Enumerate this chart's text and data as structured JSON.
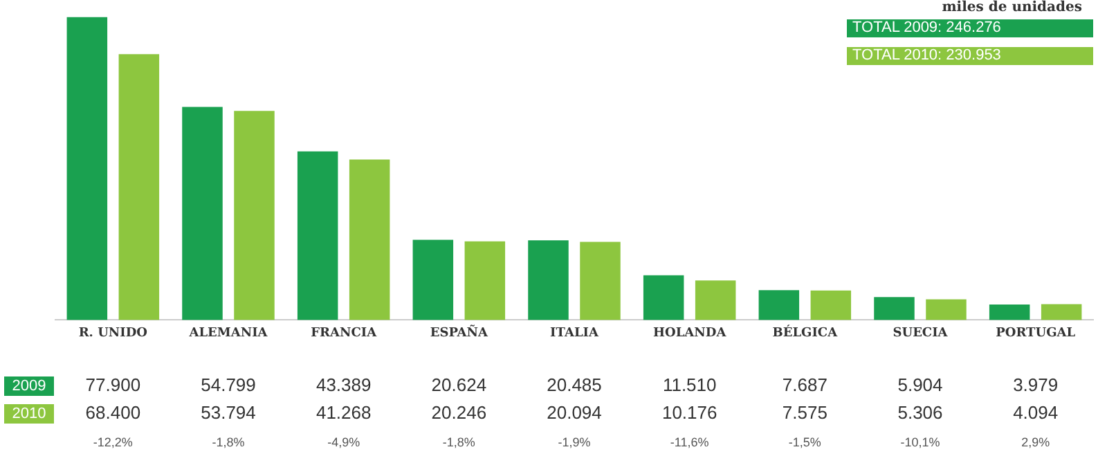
{
  "chart_data": {
    "type": "bar",
    "subtitle": "miles de unidades",
    "categories": [
      "R. UNIDO",
      "ALEMANIA",
      "FRANCIA",
      "ESPAÑA",
      "ITALIA",
      "HOLANDA",
      "BÉLGICA",
      "SUECIA",
      "PORTUGAL"
    ],
    "series": [
      {
        "name": "2009",
        "color": "#1aa150",
        "values": [
          77900,
          54799,
          43389,
          20624,
          20485,
          11510,
          7687,
          5904,
          3979
        ],
        "value_labels": [
          "77.900",
          "54.799",
          "43.389",
          "20.624",
          "20.485",
          "11.510",
          "7.687",
          "5.904",
          "3.979"
        ]
      },
      {
        "name": "2010",
        "color": "#8dc63f",
        "values": [
          68400,
          53794,
          41268,
          20246,
          20094,
          10176,
          7575,
          5306,
          4094
        ],
        "value_labels": [
          "68.400",
          "53.794",
          "41.268",
          "20.246",
          "20.094",
          "10.176",
          "7.575",
          "5.306",
          "4.094"
        ]
      }
    ],
    "annotations": [
      "TOTAL 2009: 246.276",
      "TOTAL 2010: 230.953",
      "-12,2%",
      "-1,8%",
      "-4,9%",
      "-1,8%",
      "-1,9%",
      "-11,6%",
      "-1,5%",
      "-10,1%",
      "2,9%"
    ],
    "grid": false,
    "legend": false
  }
}
